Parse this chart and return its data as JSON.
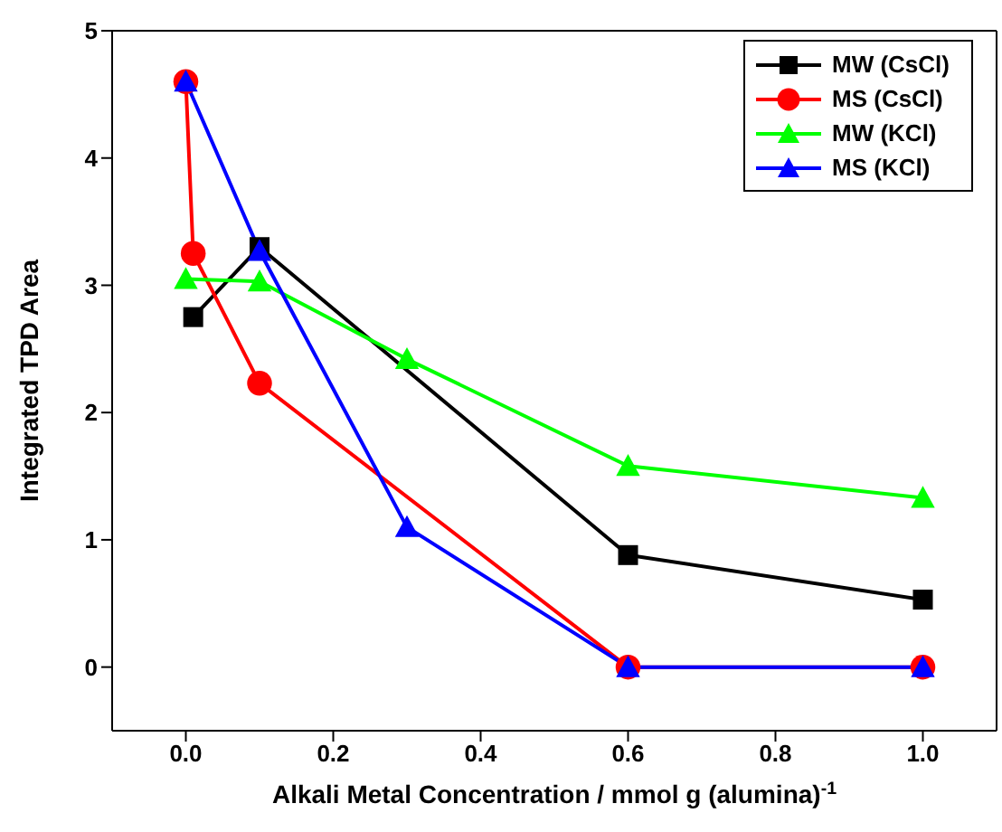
{
  "chart_data": {
    "type": "line",
    "xlabel": "Alkali Metal Concentration / mmol g (alumina)$^{-1}$",
    "ylabel": "Integrated TPD Area",
    "xlim": [
      -0.1,
      1.1
    ],
    "xticks": [
      {
        "value": 0,
        "label": "0.0"
      },
      {
        "value": 0.2,
        "label": "0.2"
      },
      {
        "value": 0.4,
        "label": "0.4"
      },
      {
        "value": 0.6,
        "label": "0.6"
      },
      {
        "value": 0.8,
        "label": "0.8"
      },
      {
        "value": 1,
        "label": "1.0"
      }
    ],
    "ylim": [
      -0.5,
      5
    ],
    "yticks": [
      0,
      1,
      2,
      3,
      4,
      5
    ],
    "legend": "top right",
    "line_style": "solid",
    "series": [
      {
        "name": "MW (CsCl)",
        "color": "#000000",
        "marker": "square",
        "x": [
          0.01,
          0.1,
          0.6,
          1.0
        ],
        "values": [
          2.75,
          3.3,
          0.88,
          0.53
        ]
      },
      {
        "name": "MS (CsCl)",
        "color": "#ff0000",
        "marker": "circle",
        "x": [
          0,
          0.01,
          0.1,
          0.6,
          1.0
        ],
        "values": [
          4.6,
          3.25,
          2.23,
          0,
          0
        ]
      },
      {
        "name": "MW (KCl)",
        "color": "#00ff00",
        "marker": "triangle",
        "x": [
          0,
          0.1,
          0.3,
          0.6,
          1.0
        ],
        "values": [
          3.05,
          3.03,
          2.42,
          1.58,
          1.33
        ]
      },
      {
        "name": "MS (KCl)",
        "color": "#0000ff",
        "marker": "triangle",
        "x": [
          0,
          0.1,
          0.3,
          0.6,
          1.0
        ],
        "values": [
          4.6,
          3.27,
          1.1,
          0,
          0
        ]
      }
    ]
  }
}
